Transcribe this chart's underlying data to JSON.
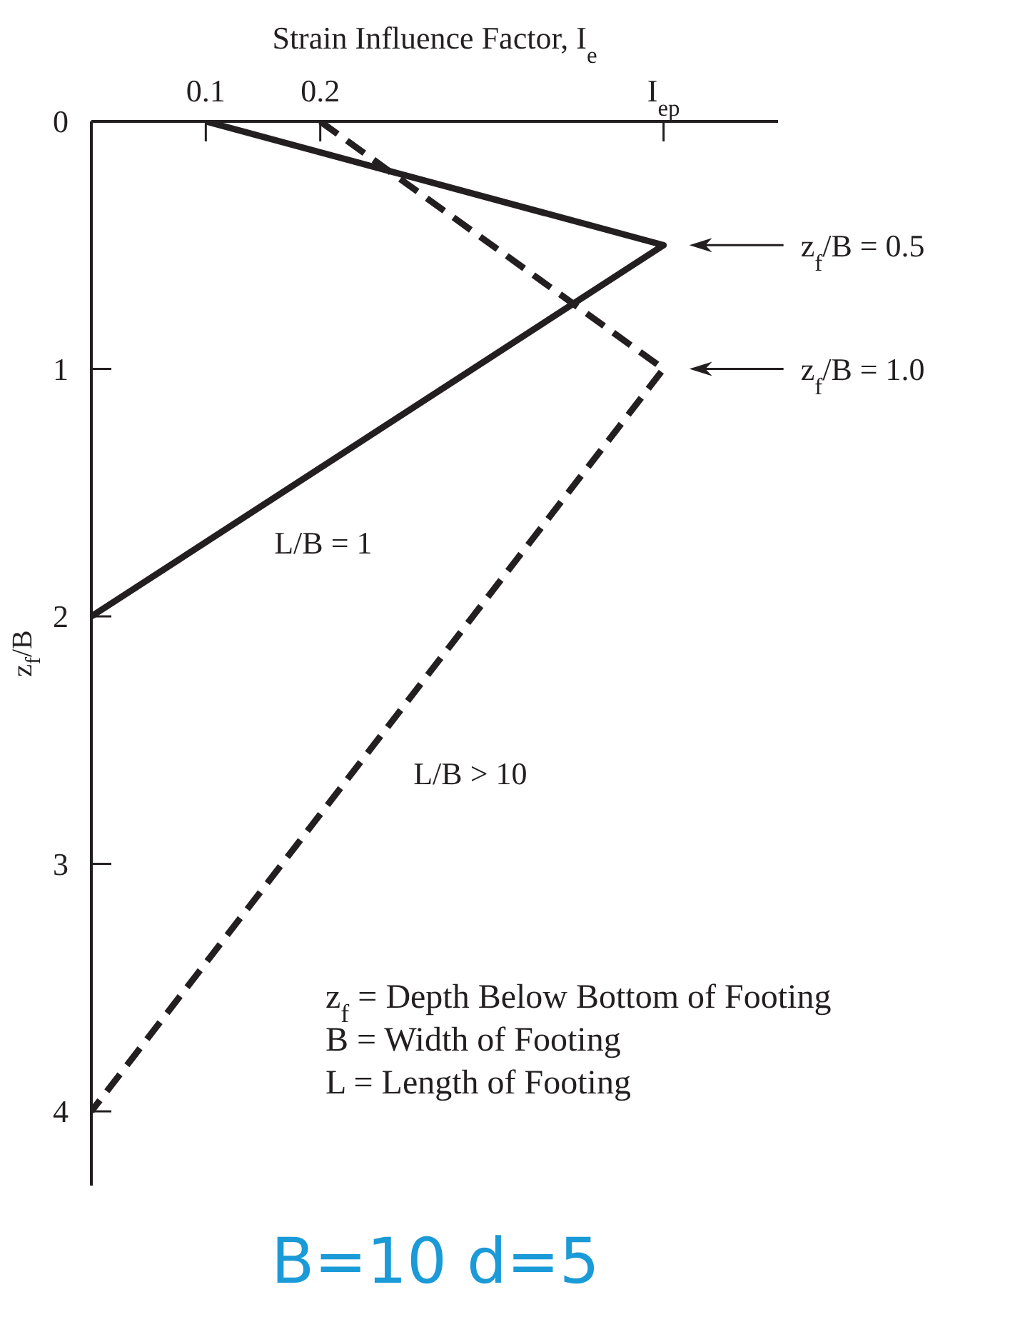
{
  "chart_data": {
    "type": "line",
    "xlabel": "Strain Influence Factor, I$_{e}$",
    "ylabel": "z$_{f}$/B",
    "xlim": [
      0,
      0.6
    ],
    "xticks": [
      0.1,
      0.2,
      {
        "value": 0.5,
        "label": "I$_{ep}$"
      }
    ],
    "ylim": [
      4.3,
      0
    ],
    "yticks": [
      0,
      1,
      2,
      3,
      4
    ],
    "marker": "none",
    "series": [
      {
        "name": "L/B = 1",
        "color": "#231f20",
        "line_style": "solid",
        "x": [
          0.1,
          0.5,
          0
        ],
        "values": [
          0,
          0.5,
          2
        ]
      },
      {
        "name": "L/B > 10",
        "color": "#231f20",
        "line_style": "dashed",
        "x": [
          0.2,
          0.5,
          0
        ],
        "values": [
          0,
          1.0,
          4
        ]
      }
    ],
    "annotations": [
      "z$_{f}$/B = 0.5",
      "z$_{f}$/B = 1.0",
      "z$_{f}$ = Depth Below Bottom of Footing",
      "B = Width of Footing",
      "L = Length of Footing",
      "B=10 d=5"
    ]
  }
}
